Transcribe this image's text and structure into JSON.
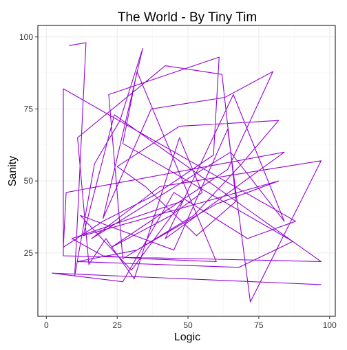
{
  "colors": {
    "series": "#9400D3"
  },
  "chart_data": {
    "type": "line",
    "title": "The World - By Tiny Tim",
    "xlabel": "Logic",
    "ylabel": "Sanity",
    "xlim": [
      -3,
      102
    ],
    "ylim": [
      3,
      104
    ],
    "xticks": [
      0,
      25,
      50,
      75,
      100
    ],
    "yticks": [
      25,
      50,
      75,
      100
    ],
    "grid": true,
    "legend": "none",
    "series": [
      {
        "x": [
          8,
          14,
          10,
          17,
          26,
          34,
          20,
          37,
          63,
          80,
          64,
          23,
          44,
          55,
          47,
          31,
          21,
          15,
          11,
          42,
          62,
          67,
          53,
          35,
          25,
          47,
          82,
          69,
          52,
          27,
          22,
          61,
          59,
          38,
          20,
          6,
          7,
          84,
          42,
          66,
          84,
          65,
          16,
          40,
          97,
          72,
          64,
          45,
          12,
          30,
          48,
          9,
          20,
          34,
          60,
          32,
          27,
          87,
          68,
          11,
          32,
          60,
          82,
          13,
          24,
          97,
          6,
          6,
          88,
          71,
          45,
          27,
          2,
          97
        ],
        "y": [
          97,
          98,
          17,
          56,
          71,
          96,
          37,
          75,
          79,
          88,
          54,
          27,
          38,
          46,
          65,
          16,
          30,
          21,
          65,
          90,
          87,
          43,
          31,
          48,
          55,
          69,
          71,
          56,
          38,
          23,
          80,
          93,
          59,
          45,
          36,
          27,
          46,
          60,
          30,
          80,
          36,
          60,
          30,
          48,
          57,
          8,
          68,
          26,
          38,
          19,
          43,
          30,
          24,
          23,
          22,
          88,
          63,
          29,
          20,
          22,
          26,
          42,
          50,
          31,
          73,
          22,
          24,
          82,
          36,
          30,
          46,
          15,
          18,
          14
        ]
      }
    ]
  }
}
